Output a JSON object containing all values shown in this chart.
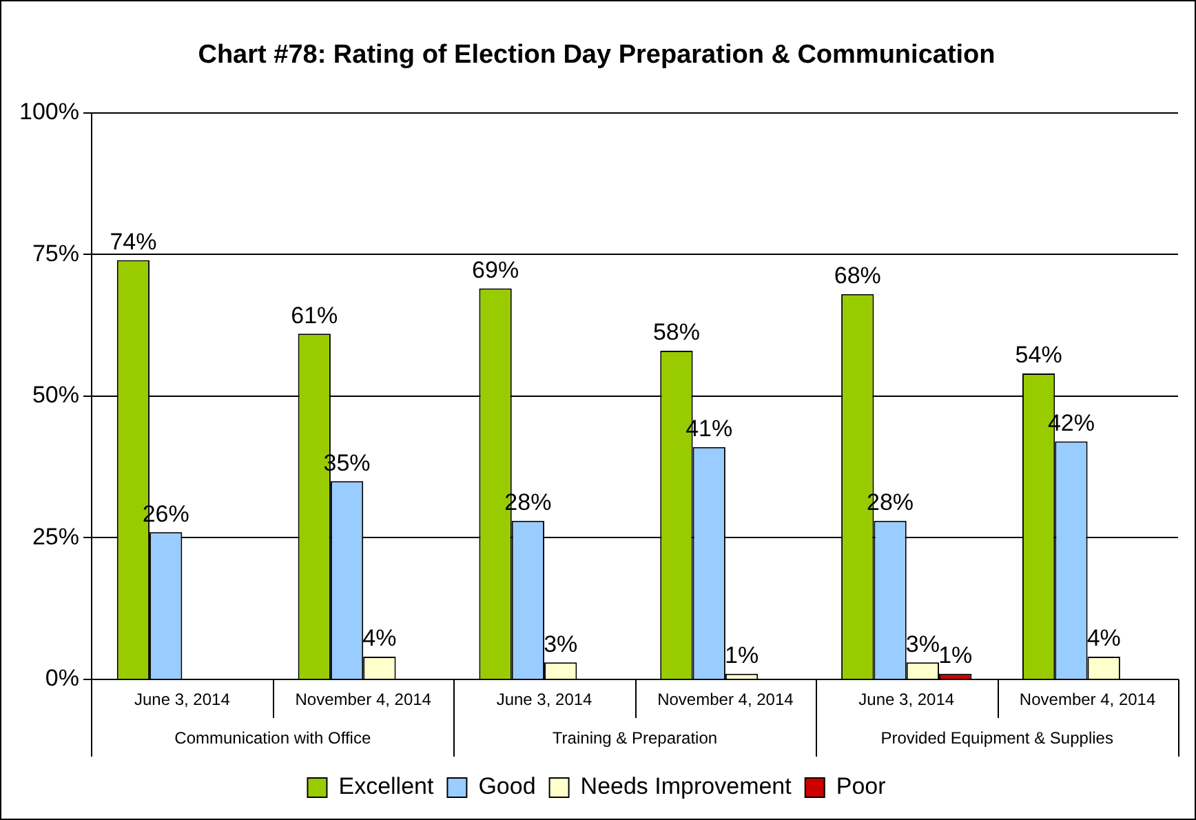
{
  "chart_data": {
    "type": "bar",
    "title": "Chart #78: Rating of Election Day Preparation & Communication",
    "categories": [
      "June 3, 2014",
      "November 4, 2014",
      "June 3, 2014",
      "November 4, 2014",
      "June 3, 2014",
      "November 4, 2014"
    ],
    "annotations": [
      "Communication with Office",
      "Training & Preparation",
      "Provided Equipment & Supplies"
    ],
    "series": [
      {
        "name": "Excellent",
        "color": "#99cc00",
        "values": [
          74,
          61,
          69,
          58,
          68,
          54
        ],
        "value_labels": [
          "74%",
          "61%",
          "69%",
          "58%",
          "68%",
          "54%"
        ]
      },
      {
        "name": "Good",
        "color": "#99ccff",
        "values": [
          26,
          35,
          28,
          41,
          28,
          42
        ],
        "value_labels": [
          "26%",
          "35%",
          "28%",
          "41%",
          "28%",
          "42%"
        ]
      },
      {
        "name": "Needs Improvement",
        "color": "#ffffcc",
        "values": [
          null,
          4,
          3,
          1,
          3,
          4
        ],
        "value_labels": [
          null,
          "4%",
          "3%",
          "1%",
          "3%",
          "4%"
        ]
      },
      {
        "name": "Poor",
        "color": "#cc0000",
        "values": [
          null,
          null,
          null,
          null,
          1,
          null
        ],
        "value_labels": [
          null,
          null,
          null,
          null,
          "1%",
          null
        ]
      }
    ],
    "ylim": [
      0,
      100
    ],
    "yticks": [
      {
        "value": 0,
        "label": "0%"
      },
      {
        "value": 25,
        "label": "25%"
      },
      {
        "value": 50,
        "label": "50%"
      },
      {
        "value": 75,
        "label": "75%"
      },
      {
        "value": 100,
        "label": "100%"
      }
    ],
    "grid": "y",
    "legend": "bottom"
  }
}
